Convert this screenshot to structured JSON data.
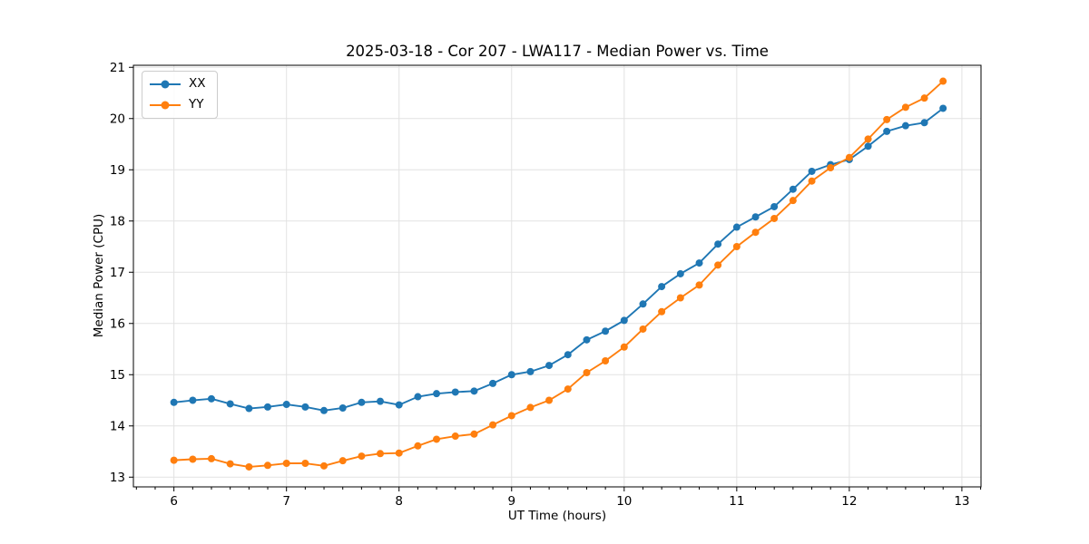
{
  "chart": {
    "title": "2025-03-18 - Cor 207 - LWA117 - Median Power vs. Time",
    "xlabel": "UT Time (hours)",
    "ylabel": "Median Power (CPU)"
  },
  "chart_data": {
    "type": "line",
    "title": "2025-03-18 - Cor 207 - LWA117 - Median Power vs. Time",
    "xlabel": "UT Time (hours)",
    "ylabel": "Median Power (CPU)",
    "xlim": [
      5.64,
      13.17
    ],
    "ylim": [
      12.81,
      21.04
    ],
    "x_ticks": [
      6,
      7,
      8,
      9,
      10,
      11,
      12,
      13
    ],
    "y_ticks": [
      13,
      14,
      15,
      16,
      17,
      18,
      19,
      20,
      21
    ],
    "x_minor_step": 0.166667,
    "grid": true,
    "legend_position": "upper-left",
    "marker": "circle",
    "x": [
      6.0,
      6.167,
      6.333,
      6.5,
      6.667,
      6.833,
      7.0,
      7.167,
      7.333,
      7.5,
      7.667,
      7.833,
      8.0,
      8.167,
      8.333,
      8.5,
      8.667,
      8.833,
      9.0,
      9.167,
      9.333,
      9.5,
      9.667,
      9.833,
      10.0,
      10.167,
      10.333,
      10.5,
      10.667,
      10.833,
      11.0,
      11.167,
      11.333,
      11.5,
      11.667,
      11.833,
      12.0,
      12.167,
      12.333,
      12.5,
      12.667,
      12.833
    ],
    "series": [
      {
        "name": "XX",
        "color": "#1f77b4",
        "values": [
          14.46,
          14.5,
          14.53,
          14.43,
          14.34,
          14.37,
          14.42,
          14.37,
          14.3,
          14.35,
          14.46,
          14.48,
          14.41,
          14.57,
          14.63,
          14.66,
          14.68,
          14.83,
          15.0,
          15.06,
          15.18,
          15.39,
          15.68,
          15.85,
          16.06,
          16.38,
          16.72,
          16.97,
          17.18,
          17.55,
          17.88,
          18.08,
          18.28,
          18.62,
          18.97,
          19.1,
          19.2,
          19.46,
          19.75,
          19.86,
          19.92,
          20.2
        ]
      },
      {
        "name": "YY",
        "color": "#ff7f0e",
        "values": [
          13.33,
          13.35,
          13.36,
          13.26,
          13.2,
          13.23,
          13.27,
          13.27,
          13.22,
          13.32,
          13.41,
          13.46,
          13.47,
          13.61,
          13.74,
          13.8,
          13.84,
          14.02,
          14.2,
          14.36,
          14.5,
          14.72,
          15.04,
          15.27,
          15.54,
          15.89,
          16.23,
          16.5,
          16.75,
          17.14,
          17.5,
          17.78,
          18.05,
          18.4,
          18.78,
          19.04,
          19.24,
          19.6,
          19.98,
          20.22,
          20.4,
          20.73
        ]
      }
    ]
  }
}
